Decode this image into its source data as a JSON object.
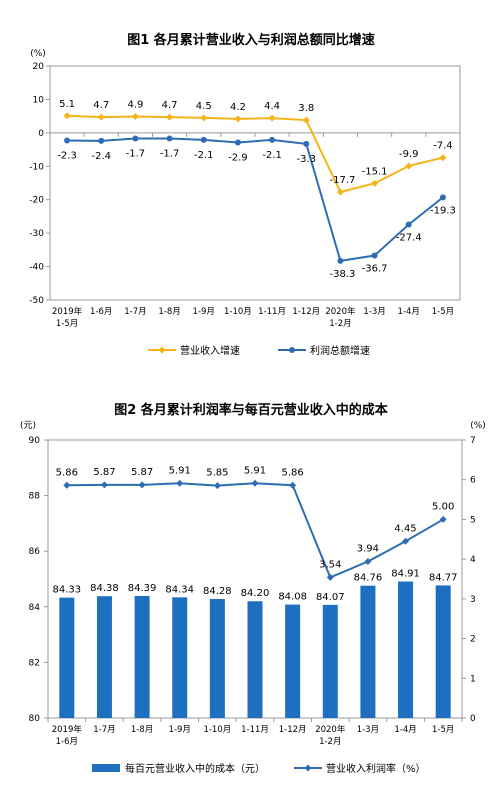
{
  "chart_data": [
    {
      "type": "line",
      "title": "图1  各月累计营业收入与利润总额同比增速",
      "yunit": "(%)",
      "ylim": [
        -50,
        20
      ],
      "yticks": [
        20,
        10,
        0,
        -10,
        -20,
        -30,
        -40,
        -50
      ],
      "categories": [
        [
          "2019年",
          "1-5月"
        ],
        [
          "1-6月"
        ],
        [
          "1-7月"
        ],
        [
          "1-8月"
        ],
        [
          "1-9月"
        ],
        [
          "1-10月"
        ],
        [
          "1-11月"
        ],
        [
          "1-12月"
        ],
        [
          "2020年",
          "1-2月"
        ],
        [
          "1-3月"
        ],
        [
          "1-4月"
        ],
        [
          "1-5月"
        ]
      ],
      "legend_position": "bottom",
      "series": [
        {
          "name": "营业收入增速",
          "color": "#F4B41A",
          "values": [
            5.1,
            4.7,
            4.9,
            4.7,
            4.5,
            4.2,
            4.4,
            3.8,
            -17.7,
            -15.1,
            -9.9,
            -7.4
          ],
          "labels": [
            "5.1",
            "4.7",
            "4.9",
            "4.7",
            "4.5",
            "4.2",
            "4.4",
            "3.8",
            "-17.7",
            "-15.1",
            "-9.9",
            "-7.4"
          ]
        },
        {
          "name": "利润总额增速",
          "color": "#2E6DB4",
          "values": [
            -2.3,
            -2.4,
            -1.7,
            -1.7,
            -2.1,
            -2.9,
            -2.1,
            -3.3,
            -38.3,
            -36.7,
            -27.4,
            -19.3
          ],
          "labels": [
            "-2.3",
            "-2.4",
            "-1.7",
            "-1.7",
            "-2.1",
            "-2.9",
            "-2.1",
            "-3.3",
            "-38.3",
            "-36.7",
            "-27.4",
            "-19.3"
          ]
        }
      ]
    },
    {
      "type": "bar+line",
      "title": "图2  各月累计利润率与每百元营业收入中的成本",
      "y_left_unit": "(元)",
      "y_right_unit": "(%)",
      "y_left_lim": [
        80,
        90
      ],
      "y_left_ticks": [
        90,
        88,
        86,
        84,
        82,
        80
      ],
      "y_right_lim": [
        0,
        7
      ],
      "y_right_ticks": [
        7,
        6,
        5,
        4,
        3,
        2,
        1,
        0
      ],
      "categories": [
        [
          "2019年",
          "1-6月"
        ],
        [
          "1-7月"
        ],
        [
          "1-8月"
        ],
        [
          "1-9月"
        ],
        [
          "1-10月"
        ],
        [
          "1-11月"
        ],
        [
          "1-12月"
        ],
        [
          "2020年",
          "1-2月"
        ],
        [
          "1-3月"
        ],
        [
          "1-4月"
        ],
        [
          "1-5月"
        ]
      ],
      "legend_position": "bottom",
      "bars": {
        "name": "每百元营业收入中的成本（元）",
        "color": "#1F6FC0",
        "values": [
          84.33,
          84.38,
          84.39,
          84.34,
          84.28,
          84.2,
          84.08,
          84.07,
          84.76,
          84.91,
          84.77
        ],
        "labels": [
          "84.33",
          "84.38",
          "84.39",
          "84.34",
          "84.28",
          "84.20",
          "84.08",
          "84.07",
          "84.76",
          "84.91",
          "84.77"
        ]
      },
      "line": {
        "name": "营业收入利润率（%）",
        "color": "#2E6DB4",
        "values": [
          5.86,
          5.87,
          5.87,
          5.91,
          5.85,
          5.91,
          5.86,
          3.54,
          3.94,
          4.45,
          5.0
        ],
        "labels": [
          "5.86",
          "5.87",
          "5.87",
          "5.91",
          "5.85",
          "5.91",
          "5.86",
          "3.54",
          "3.94",
          "4.45",
          "5.00"
        ]
      }
    }
  ]
}
